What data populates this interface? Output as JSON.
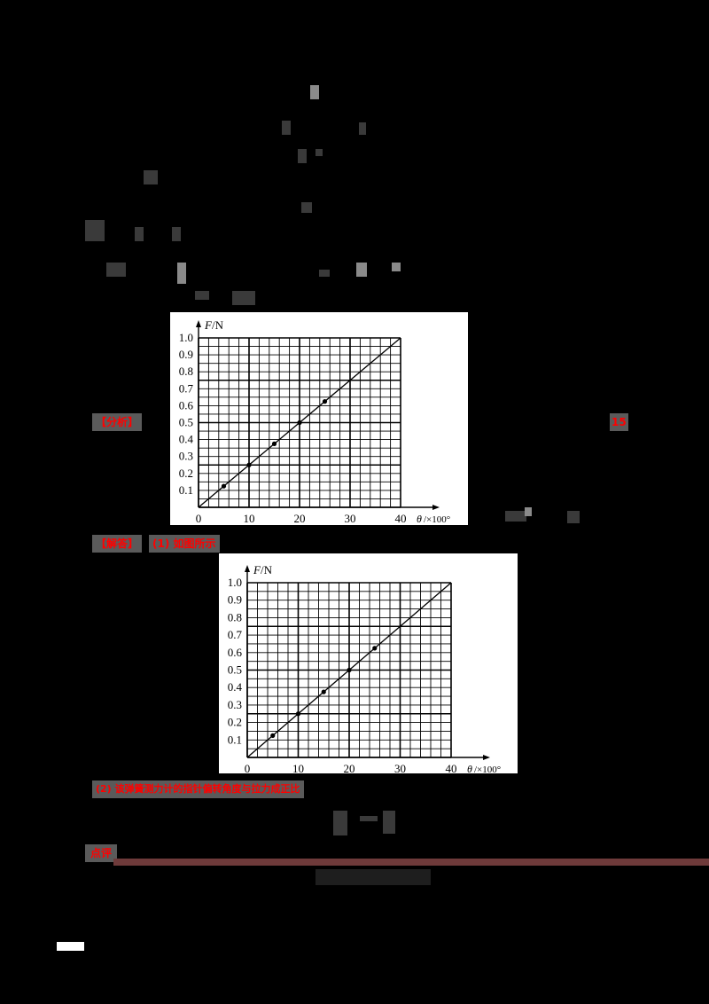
{
  "labels": {
    "analysis_tag": "【分析】",
    "solution_tag": "【解答】",
    "part1_tag": "(1) 如图所示",
    "part2_tag": "(2) 该弹簧测力计的指针偏转角度与拉力成正比",
    "comment_tag": "点评",
    "score_tag": "15"
  },
  "colors": {
    "background": "#000000",
    "tag_text": "#ff0000",
    "tag_bg": "#5a5a5a",
    "rule": "#6e3a3a"
  },
  "chart_data": [
    {
      "type": "scatter",
      "title": "",
      "xlabel": "θ/×100°",
      "ylabel": "F/N",
      "x_ticks": [
        0,
        10,
        20,
        30,
        40
      ],
      "y_ticks": [
        0.1,
        0.2,
        0.3,
        0.4,
        0.5,
        0.6,
        0.7,
        0.8,
        0.9,
        1.0
      ],
      "xlim": [
        0,
        40
      ],
      "ylim": [
        0,
        1.0
      ],
      "grid": true,
      "x": [
        5,
        10,
        15,
        20,
        25
      ],
      "y": [
        0.125,
        0.25,
        0.375,
        0.5,
        0.625
      ],
      "fit_line": {
        "from": [
          0,
          0
        ],
        "to": [
          40,
          1.0
        ]
      }
    },
    {
      "type": "scatter",
      "title": "",
      "xlabel": "θ/×100°",
      "ylabel": "F/N",
      "x_ticks": [
        0,
        10,
        20,
        30,
        40
      ],
      "y_ticks": [
        0.1,
        0.2,
        0.3,
        0.4,
        0.5,
        0.6,
        0.7,
        0.8,
        0.9,
        1.0
      ],
      "xlim": [
        0,
        40
      ],
      "ylim": [
        0,
        1.0
      ],
      "grid": true,
      "x": [
        5,
        10,
        15,
        20,
        25
      ],
      "y": [
        0.125,
        0.25,
        0.375,
        0.5,
        0.625
      ],
      "fit_line": {
        "from": [
          0,
          0
        ],
        "to": [
          40,
          1.0
        ]
      }
    }
  ]
}
